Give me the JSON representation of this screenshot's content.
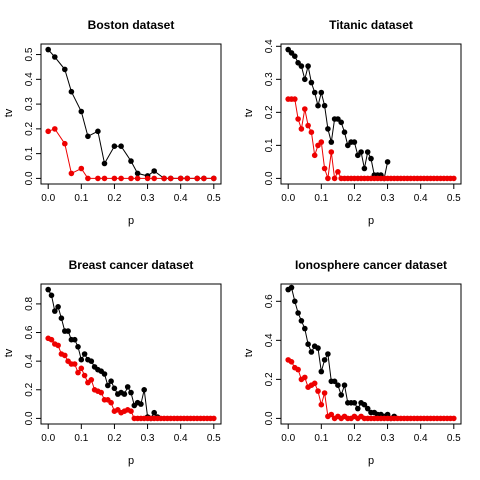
{
  "chart_data": [
    {
      "type": "line",
      "title": "Boston dataset",
      "xlabel": "p",
      "ylabel": "tv",
      "xlim": [
        0,
        0.5
      ],
      "ylim": [
        0,
        0.52
      ],
      "xticks": [
        "0.0",
        "0.1",
        "0.2",
        "0.3",
        "0.4",
        "0.5"
      ],
      "xtick_values": [
        0,
        0.1,
        0.2,
        0.3,
        0.4,
        0.5
      ],
      "yticks": [
        "0.0",
        "0.1",
        "0.2",
        "0.3",
        "0.4",
        "0.5"
      ],
      "ytick_values": [
        0,
        0.1,
        0.2,
        0.3,
        0.4,
        0.5
      ],
      "series": [
        {
          "name": "black",
          "color": "#000000",
          "x": [
            0.0,
            0.02,
            0.05,
            0.07,
            0.1,
            0.12,
            0.15,
            0.17,
            0.2,
            0.22,
            0.25,
            0.27,
            0.3,
            0.32,
            0.35,
            0.37,
            0.4,
            0.42,
            0.45,
            0.47,
            0.5
          ],
          "y": [
            0.52,
            0.49,
            0.44,
            0.35,
            0.27,
            0.17,
            0.19,
            0.06,
            0.13,
            0.13,
            0.07,
            0.02,
            0.01,
            0.03,
            0.0,
            0.0,
            0.0,
            0.0,
            0.0,
            0.0,
            0.0
          ]
        },
        {
          "name": "red",
          "color": "#ee0000",
          "x": [
            0.0,
            0.02,
            0.05,
            0.07,
            0.1,
            0.12,
            0.15,
            0.17,
            0.2,
            0.22,
            0.25,
            0.27,
            0.3,
            0.32,
            0.35,
            0.37,
            0.4,
            0.42,
            0.45,
            0.47,
            0.5
          ],
          "y": [
            0.19,
            0.2,
            0.14,
            0.02,
            0.04,
            0.0,
            0.0,
            0.0,
            0.0,
            0.0,
            0.0,
            0.0,
            0.0,
            0.0,
            0.0,
            0.0,
            0.0,
            0.0,
            0.0,
            0.0,
            0.0
          ]
        }
      ]
    },
    {
      "type": "line",
      "title": "Titanic dataset",
      "xlabel": "p",
      "ylabel": "tv",
      "xlim": [
        0,
        0.5
      ],
      "ylim": [
        0,
        0.39
      ],
      "xticks": [
        "0.0",
        "0.1",
        "0.2",
        "0.3",
        "0.4",
        "0.5"
      ],
      "xtick_values": [
        0,
        0.1,
        0.2,
        0.3,
        0.4,
        0.5
      ],
      "yticks": [
        "0.0",
        "0.1",
        "0.2",
        "0.3",
        "0.4"
      ],
      "ytick_values": [
        0,
        0.1,
        0.2,
        0.3,
        0.4
      ],
      "series": [
        {
          "name": "black",
          "color": "#000000",
          "x": [
            0.0,
            0.01,
            0.02,
            0.03,
            0.04,
            0.05,
            0.06,
            0.07,
            0.08,
            0.09,
            0.1,
            0.11,
            0.12,
            0.13,
            0.14,
            0.15,
            0.16,
            0.17,
            0.18,
            0.19,
            0.2,
            0.21,
            0.22,
            0.23,
            0.24,
            0.25,
            0.26,
            0.27,
            0.28,
            0.29,
            0.3
          ],
          "y": [
            0.39,
            0.38,
            0.37,
            0.35,
            0.34,
            0.3,
            0.34,
            0.29,
            0.26,
            0.22,
            0.26,
            0.22,
            0.15,
            0.11,
            0.18,
            0.18,
            0.17,
            0.14,
            0.1,
            0.11,
            0.11,
            0.07,
            0.08,
            0.03,
            0.08,
            0.06,
            0.01,
            0.01,
            0.01,
            0.0,
            0.05
          ]
        },
        {
          "name": "red",
          "color": "#ee0000",
          "x": [
            0.0,
            0.01,
            0.02,
            0.03,
            0.04,
            0.05,
            0.06,
            0.07,
            0.08,
            0.09,
            0.1,
            0.11,
            0.12,
            0.13,
            0.14,
            0.15,
            0.16,
            0.17,
            0.18,
            0.19,
            0.2,
            0.21,
            0.22,
            0.23,
            0.24,
            0.25,
            0.26,
            0.27,
            0.28,
            0.29,
            0.3,
            0.31,
            0.32,
            0.33,
            0.34,
            0.35,
            0.36,
            0.37,
            0.38,
            0.39,
            0.4,
            0.41,
            0.42,
            0.43,
            0.44,
            0.45,
            0.46,
            0.47,
            0.48,
            0.49,
            0.5
          ],
          "y": [
            0.24,
            0.24,
            0.24,
            0.18,
            0.15,
            0.21,
            0.16,
            0.14,
            0.07,
            0.1,
            0.11,
            0.03,
            0.0,
            0.08,
            0.0,
            0.02,
            0.0,
            0.0,
            0.0,
            0.0,
            0.0,
            0.0,
            0.0,
            0.0,
            0.0,
            0.0,
            0.0,
            0.0,
            0.0,
            0.0,
            0.0,
            0.0,
            0.0,
            0.0,
            0.0,
            0.0,
            0.0,
            0.0,
            0.0,
            0.0,
            0.0,
            0.0,
            0.0,
            0.0,
            0.0,
            0.0,
            0.0,
            0.0,
            0.0,
            0.0,
            0.0
          ]
        }
      ]
    },
    {
      "type": "line",
      "title": "Breast cancer dataset",
      "xlabel": "p",
      "ylabel": "tv",
      "xlim": [
        0,
        0.5
      ],
      "ylim": [
        0,
        0.9
      ],
      "xticks": [
        "0.0",
        "0.1",
        "0.2",
        "0.3",
        "0.4",
        "0.5"
      ],
      "xtick_values": [
        0,
        0.1,
        0.2,
        0.3,
        0.4,
        0.5
      ],
      "yticks": [
        "0.0",
        "0.2",
        "0.4",
        "0.6",
        "0.8"
      ],
      "ytick_values": [
        0,
        0.2,
        0.4,
        0.6,
        0.8
      ],
      "series": [
        {
          "name": "black",
          "color": "#000000",
          "x": [
            0.0,
            0.01,
            0.02,
            0.03,
            0.04,
            0.05,
            0.06,
            0.07,
            0.08,
            0.09,
            0.1,
            0.11,
            0.12,
            0.13,
            0.14,
            0.15,
            0.16,
            0.17,
            0.18,
            0.19,
            0.2,
            0.21,
            0.22,
            0.23,
            0.24,
            0.25,
            0.26,
            0.27,
            0.28,
            0.29,
            0.3,
            0.31,
            0.32,
            0.33
          ],
          "y": [
            0.9,
            0.86,
            0.75,
            0.78,
            0.7,
            0.61,
            0.61,
            0.55,
            0.55,
            0.5,
            0.41,
            0.45,
            0.41,
            0.4,
            0.36,
            0.34,
            0.33,
            0.31,
            0.23,
            0.26,
            0.21,
            0.17,
            0.18,
            0.17,
            0.22,
            0.18,
            0.09,
            0.11,
            0.1,
            0.2,
            0.01,
            0.0,
            0.04,
            0.01
          ]
        },
        {
          "name": "red",
          "color": "#ee0000",
          "x": [
            0.0,
            0.01,
            0.02,
            0.03,
            0.04,
            0.05,
            0.06,
            0.07,
            0.08,
            0.09,
            0.1,
            0.11,
            0.12,
            0.13,
            0.14,
            0.15,
            0.16,
            0.17,
            0.18,
            0.19,
            0.2,
            0.21,
            0.22,
            0.23,
            0.24,
            0.25,
            0.26,
            0.27,
            0.28,
            0.29,
            0.3,
            0.31,
            0.32,
            0.33,
            0.34,
            0.35,
            0.36,
            0.37,
            0.38,
            0.39,
            0.4,
            0.41,
            0.42,
            0.43,
            0.44,
            0.45,
            0.46,
            0.47,
            0.48,
            0.49,
            0.5
          ],
          "y": [
            0.56,
            0.55,
            0.52,
            0.51,
            0.45,
            0.44,
            0.4,
            0.38,
            0.38,
            0.32,
            0.35,
            0.3,
            0.25,
            0.27,
            0.2,
            0.19,
            0.18,
            0.13,
            0.13,
            0.11,
            0.05,
            0.06,
            0.04,
            0.05,
            0.06,
            0.05,
            0.0,
            0.0,
            0.0,
            0.0,
            0.0,
            0.0,
            0.0,
            0.0,
            0.0,
            0.0,
            0.0,
            0.0,
            0.0,
            0.0,
            0.0,
            0.0,
            0.0,
            0.0,
            0.0,
            0.0,
            0.0,
            0.0,
            0.0,
            0.0,
            0.0
          ]
        }
      ]
    },
    {
      "type": "line",
      "title": "Ionosphere cancer dataset",
      "xlabel": "p",
      "ylabel": "tv",
      "xlim": [
        0,
        0.5
      ],
      "ylim": [
        0,
        0.66
      ],
      "xticks": [
        "0.0",
        "0.1",
        "0.2",
        "0.3",
        "0.4",
        "0.5"
      ],
      "xtick_values": [
        0,
        0.1,
        0.2,
        0.3,
        0.4,
        0.5
      ],
      "yticks": [
        "0.0",
        "0.2",
        "0.4",
        "0.6"
      ],
      "ytick_values": [
        0,
        0.2,
        0.4,
        0.6
      ],
      "series": [
        {
          "name": "black",
          "color": "#000000",
          "x": [
            0.0,
            0.01,
            0.02,
            0.03,
            0.04,
            0.05,
            0.06,
            0.07,
            0.08,
            0.09,
            0.1,
            0.11,
            0.12,
            0.13,
            0.14,
            0.15,
            0.16,
            0.17,
            0.18,
            0.19,
            0.2,
            0.21,
            0.22,
            0.23,
            0.24,
            0.25,
            0.26,
            0.27,
            0.28,
            0.29,
            0.3,
            0.31,
            0.32
          ],
          "y": [
            0.66,
            0.67,
            0.6,
            0.54,
            0.5,
            0.46,
            0.38,
            0.34,
            0.37,
            0.36,
            0.24,
            0.3,
            0.33,
            0.19,
            0.19,
            0.17,
            0.12,
            0.17,
            0.08,
            0.08,
            0.08,
            0.05,
            0.08,
            0.07,
            0.05,
            0.03,
            0.03,
            0.02,
            0.02,
            0.01,
            0.02,
            0.0,
            0.01
          ]
        },
        {
          "name": "red",
          "color": "#ee0000",
          "x": [
            0.0,
            0.01,
            0.02,
            0.03,
            0.04,
            0.05,
            0.06,
            0.07,
            0.08,
            0.09,
            0.1,
            0.11,
            0.12,
            0.13,
            0.14,
            0.15,
            0.16,
            0.17,
            0.18,
            0.19,
            0.2,
            0.21,
            0.22,
            0.23,
            0.24,
            0.25,
            0.26,
            0.27,
            0.28,
            0.29,
            0.3,
            0.31,
            0.32,
            0.33,
            0.34,
            0.35,
            0.36,
            0.37,
            0.38,
            0.39,
            0.4,
            0.41,
            0.42,
            0.43,
            0.44,
            0.45,
            0.46,
            0.47,
            0.48,
            0.49,
            0.5
          ],
          "y": [
            0.3,
            0.29,
            0.26,
            0.25,
            0.2,
            0.21,
            0.16,
            0.17,
            0.18,
            0.14,
            0.07,
            0.13,
            0.01,
            0.02,
            0.0,
            0.01,
            0.0,
            0.01,
            0.0,
            0.0,
            0.01,
            0.0,
            0.01,
            0.0,
            0.0,
            0.0,
            0.0,
            0.0,
            0.0,
            0.0,
            0.0,
            0.0,
            0.0,
            0.0,
            0.0,
            0.0,
            0.0,
            0.0,
            0.0,
            0.0,
            0.0,
            0.0,
            0.0,
            0.0,
            0.0,
            0.0,
            0.0,
            0.0,
            0.0,
            0.0,
            0.0
          ]
        }
      ]
    }
  ]
}
